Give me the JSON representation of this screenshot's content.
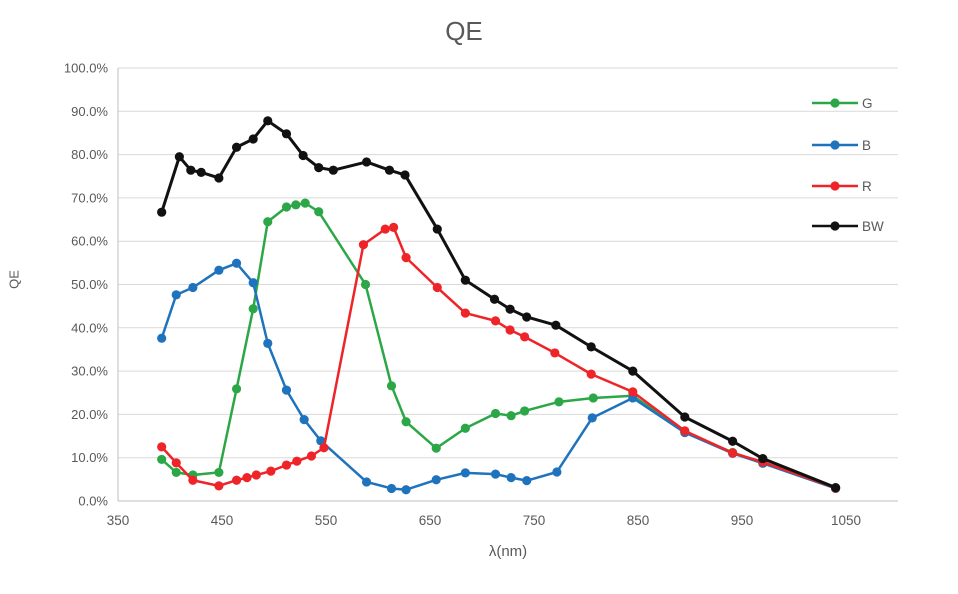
{
  "title": "QE",
  "chart_data": {
    "type": "line",
    "title": "QE",
    "xlabel": "λ(nm)",
    "ylabel": "QE",
    "xlim": [
      350,
      1100
    ],
    "ylim": [
      0,
      100
    ],
    "grid": true,
    "legend_position": "inside-top-right",
    "x_ticks": [
      350,
      450,
      550,
      650,
      750,
      850,
      950,
      1050
    ],
    "y_ticks": [
      {
        "value": 0,
        "label": "0.0%"
      },
      {
        "value": 10,
        "label": "10.0%"
      },
      {
        "value": 20,
        "label": "20.0%"
      },
      {
        "value": 30,
        "label": "30.0%"
      },
      {
        "value": 40,
        "label": "40.0%"
      },
      {
        "value": 50,
        "label": "50.0%"
      },
      {
        "value": 60,
        "label": "60.0%"
      },
      {
        "value": 70,
        "label": "70.0%"
      },
      {
        "value": 80,
        "label": "80.0%"
      },
      {
        "value": 90,
        "label": "90.0%"
      },
      {
        "value": 100,
        "label": "100.0%"
      }
    ],
    "series": [
      {
        "name": "G",
        "color": "#2CA747",
        "points": [
          [
            392,
            9.6
          ],
          [
            406,
            6.6
          ],
          [
            422,
            6.0
          ],
          [
            447,
            6.6
          ],
          [
            464,
            25.9
          ],
          [
            480,
            44.4
          ],
          [
            494,
            64.5
          ],
          [
            512,
            67.9
          ],
          [
            521,
            68.4
          ],
          [
            530,
            68.8
          ],
          [
            543,
            66.8
          ],
          [
            588,
            50.0
          ],
          [
            613,
            26.6
          ],
          [
            627,
            18.3
          ],
          [
            656,
            12.2
          ],
          [
            684,
            16.8
          ],
          [
            713,
            20.2
          ],
          [
            728,
            19.7
          ],
          [
            741,
            20.8
          ],
          [
            774,
            22.9
          ],
          [
            807,
            23.8
          ],
          [
            845,
            24.3
          ],
          [
            895,
            16.0
          ],
          [
            941,
            11.2
          ],
          [
            970,
            8.8
          ],
          [
            1040,
            3.0
          ]
        ]
      },
      {
        "name": "B",
        "color": "#1F73BD",
        "points": [
          [
            392,
            37.6
          ],
          [
            406,
            47.6
          ],
          [
            422,
            49.3
          ],
          [
            447,
            53.3
          ],
          [
            464,
            54.9
          ],
          [
            480,
            50.4
          ],
          [
            494,
            36.4
          ],
          [
            512,
            25.6
          ],
          [
            529,
            18.8
          ],
          [
            545,
            13.9
          ],
          [
            589,
            4.4
          ],
          [
            613,
            2.9
          ],
          [
            627,
            2.6
          ],
          [
            656,
            4.9
          ],
          [
            684,
            6.5
          ],
          [
            713,
            6.2
          ],
          [
            728,
            5.4
          ],
          [
            743,
            4.7
          ],
          [
            772,
            6.7
          ],
          [
            806,
            19.2
          ],
          [
            845,
            23.8
          ],
          [
            895,
            15.8
          ],
          [
            941,
            11.0
          ],
          [
            970,
            8.7
          ],
          [
            1040,
            2.9
          ]
        ]
      },
      {
        "name": "R",
        "color": "#EF2429",
        "points": [
          [
            392,
            12.5
          ],
          [
            406,
            8.8
          ],
          [
            422,
            4.8
          ],
          [
            447,
            3.5
          ],
          [
            464,
            4.8
          ],
          [
            474,
            5.4
          ],
          [
            483,
            6.0
          ],
          [
            497,
            6.9
          ],
          [
            512,
            8.3
          ],
          [
            522,
            9.2
          ],
          [
            536,
            10.4
          ],
          [
            548,
            12.3
          ],
          [
            586,
            59.2
          ],
          [
            607,
            62.8
          ],
          [
            615,
            63.2
          ],
          [
            627,
            56.2
          ],
          [
            657,
            49.3
          ],
          [
            684,
            43.4
          ],
          [
            713,
            41.6
          ],
          [
            727,
            39.5
          ],
          [
            741,
            37.9
          ],
          [
            770,
            34.2
          ],
          [
            805,
            29.3
          ],
          [
            845,
            25.2
          ],
          [
            895,
            16.2
          ],
          [
            941,
            11.1
          ],
          [
            970,
            9.0
          ],
          [
            1040,
            3.0
          ]
        ]
      },
      {
        "name": "BW",
        "color": "#111111",
        "points": [
          [
            392,
            66.7
          ],
          [
            409,
            79.5
          ],
          [
            420,
            76.4
          ],
          [
            430,
            75.9
          ],
          [
            447,
            74.6
          ],
          [
            464,
            81.7
          ],
          [
            480,
            83.6
          ],
          [
            494,
            87.8
          ],
          [
            512,
            84.8
          ],
          [
            528,
            79.8
          ],
          [
            543,
            77.0
          ],
          [
            557,
            76.4
          ],
          [
            589,
            78.3
          ],
          [
            611,
            76.4
          ],
          [
            626,
            75.3
          ],
          [
            657,
            62.8
          ],
          [
            684,
            51.0
          ],
          [
            712,
            46.6
          ],
          [
            727,
            44.3
          ],
          [
            743,
            42.5
          ],
          [
            771,
            40.6
          ],
          [
            805,
            35.6
          ],
          [
            845,
            30.0
          ],
          [
            895,
            19.4
          ],
          [
            941,
            13.8
          ],
          [
            970,
            9.8
          ],
          [
            1040,
            3.1
          ]
        ]
      }
    ],
    "style": {
      "grid_color": "#D9D9D9",
      "axis_color": "#BFBFBF",
      "text_color": "#595959"
    }
  }
}
